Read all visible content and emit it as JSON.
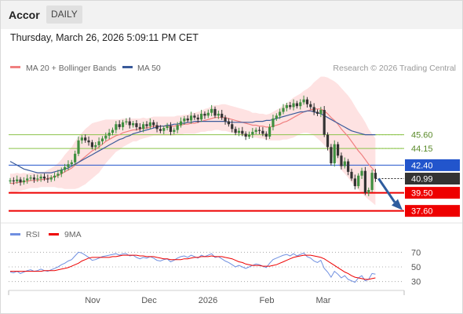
{
  "header": {
    "symbol": "Accor",
    "timeframe": "DAILY",
    "datetime": "Thursday, March 26, 2026 5:09:11 PM CET"
  },
  "legend": {
    "ma20_label": "MA 20 + Bollinger Bands",
    "ma50_label": "MA 50",
    "credit": "Research © 2026 Trading Central"
  },
  "colors": {
    "ma20": "#f08080",
    "ma50": "#3a5a9a",
    "band": "#fdd8d8",
    "up": "#3f8f3f",
    "down": "#333333",
    "support": "#ee0000",
    "resistance": "#8bc34a",
    "pivot": "#2255cc",
    "arrow": "#2e5c9e",
    "rsi": "#6f8fe0",
    "rsi9": "#ee0000"
  },
  "chart_data": [
    {
      "type": "candlestick",
      "x_ticks": [
        "Nov",
        "Dec",
        "2026",
        "Feb",
        "Mar"
      ],
      "ylim": [
        36.5,
        51.5
      ],
      "series": [
        {
          "name": "MA 20 + Bollinger Bands"
        },
        {
          "name": "MA 50"
        }
      ],
      "levels": [
        {
          "value": 45.6,
          "label": "45.60",
          "kind": "resistance"
        },
        {
          "value": 44.15,
          "label": "44.15",
          "kind": "resistance"
        },
        {
          "value": 42.4,
          "label": "42.40",
          "kind": "pivot"
        },
        {
          "value": 40.99,
          "label": "40.99",
          "kind": "last"
        },
        {
          "value": 39.5,
          "label": "39.50",
          "kind": "support"
        },
        {
          "value": 37.6,
          "label": "37.60",
          "kind": "support"
        }
      ],
      "forecast": {
        "from": 40.99,
        "to": 37.6
      },
      "closes": [
        40.8,
        40.7,
        40.9,
        40.6,
        40.8,
        41.0,
        41.1,
        40.9,
        41.0,
        41.2,
        41.0,
        40.9,
        41.1,
        41.3,
        41.5,
        41.9,
        42.2,
        42.5,
        42.7,
        43.6,
        45.0,
        45.3,
        45.0,
        44.8,
        44.3,
        44.5,
        44.9,
        45.2,
        45.5,
        45.8,
        46.1,
        46.7,
        46.4,
        46.9,
        47.0,
        46.6,
        46.8,
        46.4,
        46.2,
        46.7,
        46.5,
        46.9,
        46.6,
        46.2,
        46.0,
        46.3,
        46.5,
        45.9,
        46.1,
        46.6,
        47.0,
        47.3,
        47.1,
        47.6,
        47.4,
        47.2,
        47.8,
        47.6,
        47.9,
        48.3,
        47.6,
        47.8,
        47.4,
        47.0,
        46.7,
        46.2,
        45.8,
        46.0,
        45.7,
        45.4,
        45.6,
        45.9,
        46.1,
        46.0,
        45.7,
        45.4,
        46.4,
        47.3,
        47.6,
        48.0,
        48.4,
        48.7,
        48.5,
        48.9,
        48.6,
        49.0,
        49.3,
        48.8,
        48.5,
        48.0,
        47.8,
        48.2,
        45.6,
        44.3,
        42.6,
        44.6,
        43.4,
        42.3,
        42.8,
        41.7,
        41.0,
        40.2,
        41.3,
        41.8,
        39.5,
        39.8,
        41.6,
        40.99
      ],
      "ma20": [
        40.5,
        40.5,
        40.6,
        40.6,
        40.7,
        40.7,
        40.8,
        40.8,
        40.8,
        40.9,
        40.9,
        41.0,
        41.1,
        41.2,
        41.3,
        41.5,
        41.7,
        41.9,
        42.1,
        42.4,
        42.7,
        43.0,
        43.3,
        43.6,
        43.9,
        44.1,
        44.3,
        44.6,
        44.9,
        45.1,
        45.3,
        45.5,
        45.6,
        45.8,
        45.9,
        46.0,
        46.1,
        46.1,
        46.2,
        46.3,
        46.3,
        46.4,
        46.5,
        46.5,
        46.5,
        46.5,
        46.5,
        46.5,
        46.5,
        46.6,
        46.6,
        46.7,
        46.7,
        46.8,
        46.8,
        46.9,
        47.0,
        47.1,
        47.2,
        47.3,
        47.4,
        47.4,
        47.4,
        47.4,
        47.3,
        47.2,
        47.1,
        47.0,
        46.9,
        46.8,
        46.7,
        46.6,
        46.6,
        46.5,
        46.5,
        46.4,
        46.4,
        46.5,
        46.6,
        46.7,
        46.9,
        47.0,
        47.2,
        47.4,
        47.6,
        47.8,
        48.0,
        48.1,
        48.2,
        48.3,
        48.3,
        48.3,
        48.1,
        47.8,
        47.4,
        47.1,
        46.7,
        46.2,
        45.8,
        45.4,
        44.9,
        44.4,
        43.9,
        43.5,
        43.0,
        42.5,
        42.1,
        41.7
      ],
      "band_halfwidth": [
        1.0,
        1.0,
        1.0,
        0.9,
        0.9,
        0.8,
        0.8,
        0.8,
        0.8,
        0.8,
        0.8,
        0.9,
        1.0,
        1.1,
        1.3,
        1.5,
        1.8,
        2.0,
        2.2,
        2.5,
        2.7,
        2.8,
        2.9,
        2.9,
        2.9,
        2.8,
        2.7,
        2.5,
        2.3,
        2.1,
        1.9,
        1.7,
        1.6,
        1.5,
        1.4,
        1.3,
        1.2,
        1.2,
        1.1,
        1.1,
        1.0,
        1.0,
        1.0,
        1.0,
        1.0,
        1.0,
        1.0,
        1.0,
        1.0,
        1.0,
        1.0,
        1.0,
        1.0,
        1.1,
        1.1,
        1.1,
        1.1,
        1.2,
        1.2,
        1.3,
        1.3,
        1.3,
        1.4,
        1.4,
        1.4,
        1.4,
        1.4,
        1.4,
        1.4,
        1.4,
        1.4,
        1.3,
        1.3,
        1.3,
        1.3,
        1.3,
        1.4,
        1.5,
        1.6,
        1.7,
        1.8,
        1.9,
        2.0,
        2.1,
        2.1,
        2.1,
        2.2,
        2.3,
        2.5,
        2.8,
        3.1,
        3.4,
        3.6,
        3.8,
        4.0,
        4.1,
        4.2,
        4.3,
        4.3,
        4.3,
        4.3,
        4.2,
        4.1,
        4.0,
        3.9,
        3.7,
        3.6,
        3.5
      ],
      "ma50": [
        42.8,
        42.6,
        42.4,
        42.2,
        42.0,
        41.9,
        41.8,
        41.7,
        41.6,
        41.6,
        41.6,
        41.6,
        41.6,
        41.7,
        41.8,
        41.9,
        42.0,
        42.1,
        42.3,
        42.5,
        42.7,
        42.9,
        43.1,
        43.3,
        43.5,
        43.7,
        43.9,
        44.1,
        44.3,
        44.5,
        44.7,
        44.9,
        45.1,
        45.2,
        45.4,
        45.5,
        45.7,
        45.8,
        45.9,
        46.0,
        46.1,
        46.2,
        46.3,
        46.4,
        46.5,
        46.5,
        46.6,
        46.6,
        46.7,
        46.7,
        46.8,
        46.8,
        46.9,
        46.9,
        47.0,
        47.0,
        47.0,
        47.0,
        47.0,
        47.0,
        47.0,
        47.0,
        47.0,
        47.0,
        46.9,
        46.9,
        46.9,
        46.9,
        46.9,
        46.9,
        46.9,
        46.9,
        47.0,
        47.0,
        47.0,
        47.1,
        47.1,
        47.2,
        47.3,
        47.4,
        47.5,
        47.6,
        47.7,
        47.8,
        47.9,
        48.0,
        48.0,
        48.1,
        48.1,
        48.0,
        47.9,
        47.8,
        47.6,
        47.4,
        47.2,
        47.0,
        46.8,
        46.6,
        46.4,
        46.2,
        46.0,
        45.9,
        45.8,
        45.7,
        45.6,
        45.6,
        45.6,
        45.6
      ]
    },
    {
      "type": "line",
      "title": "RSI",
      "series": [
        {
          "name": "RSI"
        },
        {
          "name": "9MA"
        }
      ],
      "y_ticks": [
        70,
        50,
        30
      ],
      "ylim": [
        20,
        80
      ],
      "rsi": [
        43,
        42,
        44,
        41,
        43,
        45,
        46,
        44,
        45,
        47,
        45,
        44,
        46,
        48,
        50,
        53,
        55,
        58,
        60,
        65,
        70,
        69,
        66,
        63,
        59,
        60,
        62,
        64,
        65,
        66,
        67,
        68,
        66,
        68,
        68,
        65,
        66,
        63,
        61,
        63,
        62,
        64,
        62,
        59,
        58,
        60,
        61,
        57,
        59,
        62,
        64,
        65,
        63,
        66,
        64,
        62,
        66,
        64,
        66,
        68,
        63,
        64,
        61,
        58,
        56,
        53,
        50,
        52,
        50,
        48,
        50,
        52,
        54,
        53,
        51,
        49,
        55,
        60,
        62,
        64,
        66,
        67,
        65,
        68,
        65,
        67,
        69,
        64,
        62,
        58,
        56,
        59,
        48,
        43,
        36,
        44,
        40,
        35,
        38,
        33,
        31,
        29,
        35,
        38,
        31,
        33,
        41,
        40
      ],
      "rsi_ma": [
        44,
        44,
        44,
        44,
        44,
        44,
        44,
        44,
        44,
        44,
        45,
        45,
        45,
        45,
        46,
        47,
        48,
        49,
        51,
        53,
        55,
        58,
        60,
        62,
        63,
        63,
        63,
        63,
        63,
        63,
        64,
        64,
        65,
        66,
        66,
        66,
        66,
        66,
        65,
        65,
        64,
        64,
        64,
        63,
        62,
        61,
        61,
        60,
        60,
        60,
        60,
        61,
        61,
        62,
        63,
        63,
        64,
        64,
        64,
        65,
        64,
        64,
        64,
        63,
        62,
        61,
        59,
        57,
        56,
        54,
        53,
        52,
        52,
        52,
        51,
        51,
        51,
        52,
        53,
        55,
        57,
        59,
        61,
        63,
        64,
        65,
        66,
        66,
        66,
        65,
        64,
        63,
        61,
        58,
        55,
        52,
        49,
        46,
        43,
        41,
        38,
        36,
        35,
        34,
        33,
        33,
        34,
        35
      ]
    }
  ]
}
